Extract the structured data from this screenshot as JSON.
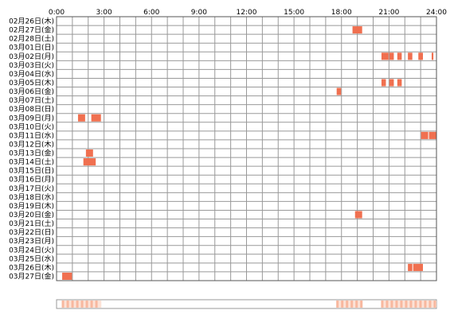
{
  "chart_data": {
    "type": "heatmap",
    "title": "",
    "xlabel": "",
    "ylabel": "",
    "x_ticks": [
      "0:00",
      "3:00",
      "6:00",
      "9:00",
      "12:00",
      "15:00",
      "18:00",
      "21:00",
      "24:00"
    ],
    "x_range_hours": [
      0,
      24
    ],
    "grid": true,
    "rows": [
      {
        "label": "02月26日(木)",
        "active": []
      },
      {
        "label": "02月27日(金)",
        "active": [
          [
            18.67,
            19.33
          ]
        ]
      },
      {
        "label": "02月28日(土)",
        "active": []
      },
      {
        "label": "03月01日(日)",
        "active": []
      },
      {
        "label": "03月02日(月)",
        "active": [
          [
            20.5,
            21.0
          ],
          [
            21.0,
            21.33
          ],
          [
            21.5,
            21.83
          ],
          [
            22.17,
            22.5
          ],
          [
            22.83,
            23.17
          ],
          [
            23.67,
            23.83
          ]
        ]
      },
      {
        "label": "03月03日(火)",
        "active": []
      },
      {
        "label": "03月04日(水)",
        "active": []
      },
      {
        "label": "03月05日(木)",
        "active": [
          [
            20.5,
            20.83
          ],
          [
            21.0,
            21.33
          ],
          [
            21.5,
            21.83
          ]
        ]
      },
      {
        "label": "03月06日(金)",
        "active": [
          [
            17.67,
            18.0
          ]
        ]
      },
      {
        "label": "03月07日(土)",
        "active": []
      },
      {
        "label": "03月08日(日)",
        "active": []
      },
      {
        "label": "03月09日(月)",
        "active": [
          [
            1.33,
            1.83
          ],
          [
            2.17,
            2.83
          ]
        ]
      },
      {
        "label": "03月10日(火)",
        "active": []
      },
      {
        "label": "03月11日(水)",
        "active": [
          [
            23.0,
            23.5
          ],
          [
            23.5,
            24.0
          ]
        ]
      },
      {
        "label": "03月12日(木)",
        "active": []
      },
      {
        "label": "03月13日(金)",
        "active": [
          [
            1.83,
            2.33
          ]
        ]
      },
      {
        "label": "03月14日(土)",
        "active": [
          [
            1.67,
            2.5
          ]
        ]
      },
      {
        "label": "03月15日(日)",
        "active": []
      },
      {
        "label": "03月16日(月)",
        "active": []
      },
      {
        "label": "03月17日(火)",
        "active": []
      },
      {
        "label": "03月18日(水)",
        "active": []
      },
      {
        "label": "03月19日(木)",
        "active": []
      },
      {
        "label": "03月20日(金)",
        "active": [
          [
            18.83,
            19.33
          ]
        ]
      },
      {
        "label": "03月21日(土)",
        "active": []
      },
      {
        "label": "03月22日(日)",
        "active": []
      },
      {
        "label": "03月23日(月)",
        "active": []
      },
      {
        "label": "03月24日(火)",
        "active": []
      },
      {
        "label": "03月25日(水)",
        "active": []
      },
      {
        "label": "03月26日(木)",
        "active": [
          [
            22.17,
            22.5
          ],
          [
            22.5,
            23.17
          ]
        ]
      },
      {
        "label": "03月27日(金)",
        "active": [
          [
            0.33,
            1.0
          ]
        ]
      }
    ],
    "summary_band": {
      "active_ranges": [
        [
          0.33,
          2.83
        ],
        [
          17.67,
          19.33
        ],
        [
          20.5,
          24.0
        ]
      ]
    },
    "colors": {
      "active": "#f07050",
      "grid": "#999999",
      "border": "#555555",
      "band_light": "#fde2d6",
      "band_strong": "#f8b89f"
    }
  }
}
